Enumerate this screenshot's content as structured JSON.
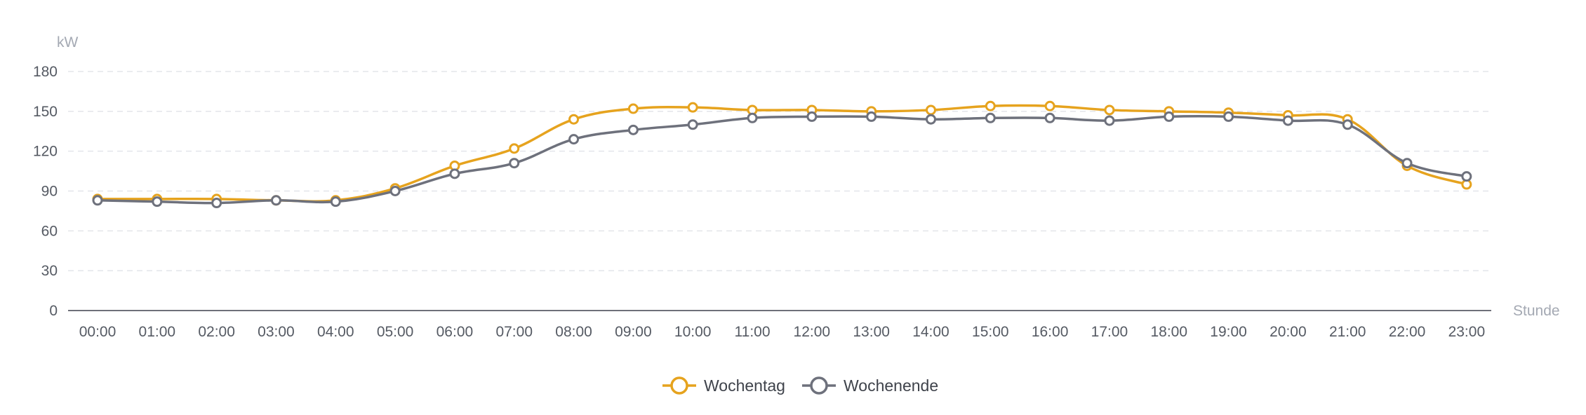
{
  "chart_data": {
    "type": "line",
    "title": "",
    "ylabel": "kW",
    "xlabel": "Stunde",
    "ylim": [
      0,
      180
    ],
    "yticks": [
      0,
      30,
      60,
      90,
      120,
      150,
      180
    ],
    "grid": true,
    "legend_position": "bottom-center",
    "categories": [
      "00:00",
      "01:00",
      "02:00",
      "03:00",
      "04:00",
      "05:00",
      "06:00",
      "07:00",
      "08:00",
      "09:00",
      "10:00",
      "11:00",
      "12:00",
      "13:00",
      "14:00",
      "15:00",
      "16:00",
      "17:00",
      "18:00",
      "19:00",
      "20:00",
      "21:00",
      "22:00",
      "23:00"
    ],
    "series": [
      {
        "name": "Wochentag",
        "color": "#e6a31e",
        "values": [
          84,
          84,
          84,
          83,
          83,
          92,
          109,
          122,
          144,
          152,
          153,
          151,
          151,
          150,
          151,
          154,
          154,
          151,
          150,
          149,
          147,
          144,
          109,
          95
        ]
      },
      {
        "name": "Wochenende",
        "color": "#6e717c",
        "values": [
          83,
          82,
          81,
          83,
          82,
          90,
          103,
          111,
          129,
          136,
          140,
          145,
          146,
          146,
          144,
          145,
          145,
          143,
          146,
          146,
          143,
          140,
          111,
          101
        ]
      }
    ]
  }
}
